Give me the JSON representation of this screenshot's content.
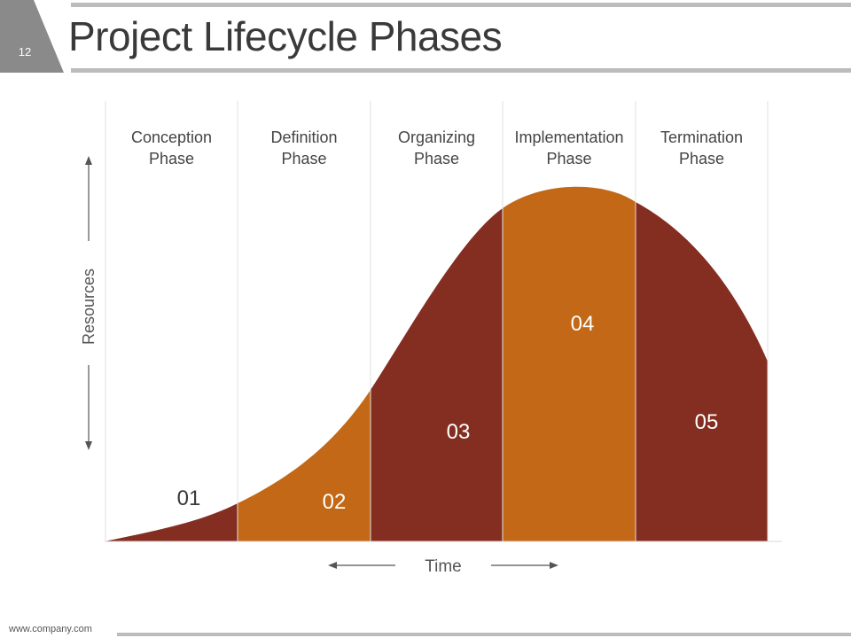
{
  "header": {
    "slide_number": "12",
    "title": "Project Lifecycle Phases"
  },
  "chart_data": {
    "type": "area",
    "title": "Project Lifecycle Phases",
    "xlabel": "Time",
    "ylabel": "Resources",
    "phases": [
      {
        "name_line1": "Conception",
        "name_line2": "Phase",
        "number": "01",
        "color": "#842e22"
      },
      {
        "name_line1": "Definition",
        "name_line2": "Phase",
        "number": "02",
        "color": "#c26817"
      },
      {
        "name_line1": "Organizing",
        "name_line2": "Phase",
        "number": "03",
        "color": "#842e22"
      },
      {
        "name_line1": "Implementation",
        "name_line2": "Phase",
        "number": "04",
        "color": "#c26817"
      },
      {
        "name_line1": "Termination",
        "name_line2": "Phase",
        "number": "05",
        "color": "#842e22"
      }
    ]
  },
  "colors": {
    "dark_brown": "#842e22",
    "orange": "#c26817",
    "gray_bar": "#bcbcbc",
    "tab_gray": "#8a8a8a"
  },
  "footer": {
    "url": "www.company.com"
  }
}
